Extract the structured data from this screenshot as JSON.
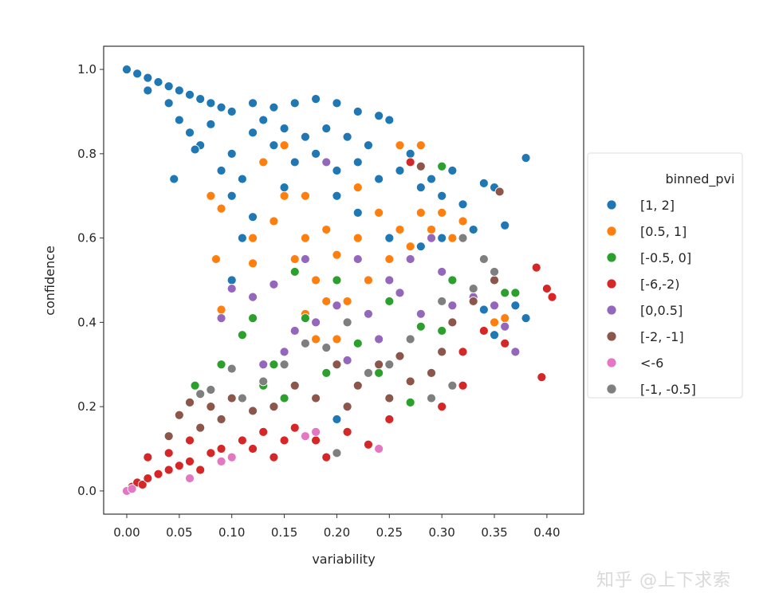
{
  "chart_data": {
    "type": "scatter",
    "xlabel": "variability",
    "ylabel": "confidence",
    "xlim": [
      -0.022,
      0.435
    ],
    "ylim": [
      -0.055,
      1.055
    ],
    "xticks": [
      "0.00",
      "0.05",
      "0.10",
      "0.15",
      "0.20",
      "0.25",
      "0.30",
      "0.35",
      "0.40"
    ],
    "yticks": [
      "0.0",
      "0.2",
      "0.4",
      "0.6",
      "0.8",
      "1.0"
    ],
    "grid": false,
    "legend": {
      "title": "binned_pvi",
      "placement": "right-outside"
    },
    "series": [
      {
        "name": "[1, 2]",
        "color": "#1f77b4",
        "points": [
          [
            0.0,
            1.0
          ],
          [
            0.01,
            0.99
          ],
          [
            0.02,
            0.98
          ],
          [
            0.03,
            0.97
          ],
          [
            0.04,
            0.96
          ],
          [
            0.05,
            0.95
          ],
          [
            0.06,
            0.94
          ],
          [
            0.07,
            0.93
          ],
          [
            0.08,
            0.92
          ],
          [
            0.09,
            0.91
          ],
          [
            0.02,
            0.95
          ],
          [
            0.04,
            0.92
          ],
          [
            0.05,
            0.88
          ],
          [
            0.06,
            0.85
          ],
          [
            0.07,
            0.82
          ],
          [
            0.045,
            0.74
          ],
          [
            0.065,
            0.81
          ],
          [
            0.08,
            0.87
          ],
          [
            0.1,
            0.9
          ],
          [
            0.12,
            0.92
          ],
          [
            0.14,
            0.91
          ],
          [
            0.16,
            0.92
          ],
          [
            0.18,
            0.93
          ],
          [
            0.2,
            0.92
          ],
          [
            0.22,
            0.9
          ],
          [
            0.24,
            0.89
          ],
          [
            0.25,
            0.88
          ],
          [
            0.1,
            0.8
          ],
          [
            0.12,
            0.85
          ],
          [
            0.14,
            0.82
          ],
          [
            0.16,
            0.78
          ],
          [
            0.18,
            0.8
          ],
          [
            0.2,
            0.76
          ],
          [
            0.22,
            0.78
          ],
          [
            0.24,
            0.74
          ],
          [
            0.26,
            0.76
          ],
          [
            0.28,
            0.72
          ],
          [
            0.3,
            0.7
          ],
          [
            0.32,
            0.68
          ],
          [
            0.34,
            0.73
          ],
          [
            0.35,
            0.72
          ],
          [
            0.38,
            0.79
          ],
          [
            0.36,
            0.63
          ],
          [
            0.33,
            0.62
          ],
          [
            0.3,
            0.6
          ],
          [
            0.28,
            0.58
          ],
          [
            0.25,
            0.6
          ],
          [
            0.22,
            0.66
          ],
          [
            0.2,
            0.7
          ],
          [
            0.15,
            0.72
          ],
          [
            0.12,
            0.65
          ],
          [
            0.1,
            0.7
          ],
          [
            0.11,
            0.6
          ],
          [
            0.1,
            0.5
          ],
          [
            0.2,
            0.17
          ],
          [
            0.34,
            0.43
          ],
          [
            0.38,
            0.41
          ],
          [
            0.35,
            0.37
          ],
          [
            0.09,
            0.76
          ],
          [
            0.11,
            0.74
          ],
          [
            0.13,
            0.88
          ],
          [
            0.15,
            0.86
          ],
          [
            0.17,
            0.84
          ],
          [
            0.19,
            0.86
          ],
          [
            0.21,
            0.84
          ],
          [
            0.23,
            0.82
          ],
          [
            0.27,
            0.8
          ],
          [
            0.29,
            0.74
          ],
          [
            0.31,
            0.76
          ],
          [
            0.37,
            0.44
          ]
        ]
      },
      {
        "name": "[0.5, 1]",
        "color": "#ff7f0e",
        "points": [
          [
            0.08,
            0.7
          ],
          [
            0.09,
            0.67
          ],
          [
            0.085,
            0.55
          ],
          [
            0.09,
            0.43
          ],
          [
            0.12,
            0.6
          ],
          [
            0.13,
            0.78
          ],
          [
            0.14,
            0.64
          ],
          [
            0.15,
            0.7
          ],
          [
            0.16,
            0.55
          ],
          [
            0.17,
            0.6
          ],
          [
            0.18,
            0.5
          ],
          [
            0.19,
            0.62
          ],
          [
            0.2,
            0.56
          ],
          [
            0.21,
            0.45
          ],
          [
            0.22,
            0.6
          ],
          [
            0.23,
            0.5
          ],
          [
            0.24,
            0.66
          ],
          [
            0.25,
            0.55
          ],
          [
            0.26,
            0.62
          ],
          [
            0.27,
            0.58
          ],
          [
            0.28,
            0.66
          ],
          [
            0.29,
            0.62
          ],
          [
            0.3,
            0.66
          ],
          [
            0.31,
            0.6
          ],
          [
            0.32,
            0.64
          ],
          [
            0.35,
            0.4
          ],
          [
            0.36,
            0.41
          ],
          [
            0.12,
            0.54
          ],
          [
            0.17,
            0.42
          ],
          [
            0.2,
            0.36
          ],
          [
            0.18,
            0.36
          ],
          [
            0.22,
            0.72
          ],
          [
            0.26,
            0.82
          ],
          [
            0.28,
            0.82
          ],
          [
            0.19,
            0.45
          ],
          [
            0.15,
            0.82
          ],
          [
            0.17,
            0.7
          ]
        ]
      },
      {
        "name": "[-0.5, 0]",
        "color": "#2ca02c",
        "points": [
          [
            0.065,
            0.25
          ],
          [
            0.09,
            0.3
          ],
          [
            0.11,
            0.37
          ],
          [
            0.12,
            0.41
          ],
          [
            0.13,
            0.25
          ],
          [
            0.15,
            0.22
          ],
          [
            0.16,
            0.52
          ],
          [
            0.17,
            0.41
          ],
          [
            0.2,
            0.5
          ],
          [
            0.22,
            0.35
          ],
          [
            0.24,
            0.28
          ],
          [
            0.25,
            0.45
          ],
          [
            0.27,
            0.21
          ],
          [
            0.28,
            0.39
          ],
          [
            0.3,
            0.38
          ],
          [
            0.3,
            0.77
          ],
          [
            0.31,
            0.5
          ],
          [
            0.34,
            0.55
          ],
          [
            0.37,
            0.47
          ],
          [
            0.36,
            0.47
          ],
          [
            0.19,
            0.28
          ],
          [
            0.14,
            0.3
          ]
        ]
      },
      {
        "name": "[-6,-2)",
        "color": "#d62728",
        "points": [
          [
            0.0,
            0.0
          ],
          [
            0.005,
            0.01
          ],
          [
            0.01,
            0.02
          ],
          [
            0.015,
            0.015
          ],
          [
            0.02,
            0.08
          ],
          [
            0.02,
            0.03
          ],
          [
            0.03,
            0.04
          ],
          [
            0.04,
            0.05
          ],
          [
            0.05,
            0.06
          ],
          [
            0.06,
            0.07
          ],
          [
            0.07,
            0.05
          ],
          [
            0.08,
            0.09
          ],
          [
            0.09,
            0.1
          ],
          [
            0.1,
            0.08
          ],
          [
            0.11,
            0.12
          ],
          [
            0.12,
            0.1
          ],
          [
            0.13,
            0.14
          ],
          [
            0.14,
            0.08
          ],
          [
            0.15,
            0.12
          ],
          [
            0.16,
            0.15
          ],
          [
            0.18,
            0.12
          ],
          [
            0.19,
            0.08
          ],
          [
            0.21,
            0.14
          ],
          [
            0.23,
            0.11
          ],
          [
            0.25,
            0.17
          ],
          [
            0.27,
            0.78
          ],
          [
            0.3,
            0.2
          ],
          [
            0.32,
            0.33
          ],
          [
            0.34,
            0.38
          ],
          [
            0.36,
            0.35
          ],
          [
            0.39,
            0.53
          ],
          [
            0.4,
            0.48
          ],
          [
            0.405,
            0.46
          ],
          [
            0.395,
            0.27
          ],
          [
            0.32,
            0.25
          ],
          [
            0.06,
            0.12
          ],
          [
            0.04,
            0.09
          ]
        ]
      },
      {
        "name": "[0,0.5]",
        "color": "#9467bd",
        "points": [
          [
            0.09,
            0.41
          ],
          [
            0.1,
            0.48
          ],
          [
            0.12,
            0.46
          ],
          [
            0.14,
            0.49
          ],
          [
            0.15,
            0.33
          ],
          [
            0.17,
            0.55
          ],
          [
            0.18,
            0.4
          ],
          [
            0.19,
            0.78
          ],
          [
            0.2,
            0.44
          ],
          [
            0.21,
            0.31
          ],
          [
            0.22,
            0.55
          ],
          [
            0.23,
            0.42
          ],
          [
            0.24,
            0.36
          ],
          [
            0.25,
            0.5
          ],
          [
            0.26,
            0.47
          ],
          [
            0.27,
            0.55
          ],
          [
            0.28,
            0.42
          ],
          [
            0.29,
            0.6
          ],
          [
            0.3,
            0.52
          ],
          [
            0.31,
            0.44
          ],
          [
            0.33,
            0.46
          ],
          [
            0.35,
            0.44
          ],
          [
            0.36,
            0.39
          ],
          [
            0.37,
            0.33
          ],
          [
            0.16,
            0.38
          ],
          [
            0.13,
            0.3
          ]
        ]
      },
      {
        "name": "[-2, -1]",
        "color": "#8c564b",
        "points": [
          [
            0.04,
            0.13
          ],
          [
            0.05,
            0.18
          ],
          [
            0.06,
            0.21
          ],
          [
            0.07,
            0.15
          ],
          [
            0.08,
            0.2
          ],
          [
            0.09,
            0.17
          ],
          [
            0.1,
            0.22
          ],
          [
            0.12,
            0.19
          ],
          [
            0.14,
            0.2
          ],
          [
            0.16,
            0.25
          ],
          [
            0.18,
            0.22
          ],
          [
            0.2,
            0.3
          ],
          [
            0.22,
            0.25
          ],
          [
            0.24,
            0.3
          ],
          [
            0.26,
            0.32
          ],
          [
            0.27,
            0.26
          ],
          [
            0.29,
            0.28
          ],
          [
            0.31,
            0.4
          ],
          [
            0.33,
            0.45
          ],
          [
            0.35,
            0.5
          ],
          [
            0.355,
            0.71
          ],
          [
            0.3,
            0.33
          ],
          [
            0.28,
            0.77
          ],
          [
            0.25,
            0.22
          ],
          [
            0.21,
            0.2
          ]
        ]
      },
      {
        "name": "<-6",
        "color": "#e377c2",
        "points": [
          [
            0.0,
            0.0
          ],
          [
            0.005,
            0.005
          ],
          [
            0.06,
            0.03
          ],
          [
            0.09,
            0.07
          ],
          [
            0.17,
            0.13
          ],
          [
            0.18,
            0.14
          ],
          [
            0.24,
            0.1
          ],
          [
            0.1,
            0.08
          ]
        ]
      },
      {
        "name": "[-1, -0.5]",
        "color": "#7f7f7f",
        "points": [
          [
            0.07,
            0.23
          ],
          [
            0.08,
            0.24
          ],
          [
            0.1,
            0.29
          ],
          [
            0.11,
            0.22
          ],
          [
            0.13,
            0.26
          ],
          [
            0.15,
            0.3
          ],
          [
            0.17,
            0.35
          ],
          [
            0.19,
            0.34
          ],
          [
            0.2,
            0.09
          ],
          [
            0.21,
            0.4
          ],
          [
            0.23,
            0.28
          ],
          [
            0.25,
            0.3
          ],
          [
            0.27,
            0.36
          ],
          [
            0.29,
            0.22
          ],
          [
            0.31,
            0.25
          ],
          [
            0.32,
            0.6
          ],
          [
            0.33,
            0.48
          ],
          [
            0.35,
            0.52
          ],
          [
            0.34,
            0.55
          ],
          [
            0.3,
            0.45
          ]
        ]
      }
    ]
  },
  "watermark": "知乎 @上下求索"
}
